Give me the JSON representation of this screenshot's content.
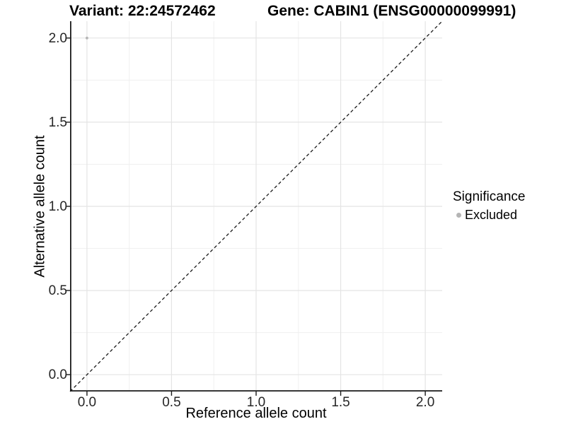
{
  "figure": {
    "title_variant": "Variant: 22:24572462",
    "title_gene": "Gene: CABIN1 (ENSG00000099991)"
  },
  "chart_data": {
    "type": "scatter",
    "title": "Variant: 22:24572462   Gene: CABIN1 (ENSG00000099991)",
    "xlabel": "Reference allele count",
    "ylabel": "Alternative allele count",
    "xlim": [
      -0.1,
      2.1
    ],
    "ylim": [
      -0.1,
      2.1
    ],
    "x_ticks": [
      0.0,
      0.5,
      1.0,
      1.5,
      2.0
    ],
    "y_ticks": [
      0.0,
      0.5,
      1.0,
      1.5,
      2.0
    ],
    "grid": {
      "major_step": 0.5,
      "minor_step": 0.25,
      "major_color": "#e4e4e4",
      "minor_color": "#f0f0f0"
    },
    "reference_line": {
      "type": "identity",
      "slope": 1,
      "intercept": 0,
      "style": "dashed",
      "color": "#1a1a1a"
    },
    "series": [
      {
        "name": "Excluded",
        "color": "#b5b5b5",
        "points": [
          {
            "x": 0.0,
            "y": 2.0
          }
        ]
      }
    ],
    "point_radius": 1.9,
    "axis_color": "#1a1a1a",
    "legend": {
      "title": "Significance",
      "position": "right",
      "items": [
        {
          "label": "Excluded",
          "color": "#b5b5b5"
        }
      ]
    }
  }
}
